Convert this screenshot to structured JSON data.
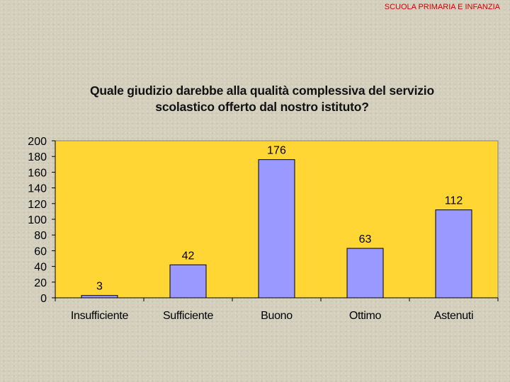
{
  "header": {
    "label": "SCUOLA PRIMARIA E INFANZIA"
  },
  "colors": {
    "plot_bg": "#ffd633",
    "bar": "#9999ff",
    "header_text": "#cc0000"
  },
  "chart_data": {
    "type": "bar",
    "title_line1": "Quale giudizio darebbe alla qualità complessiva del servizio",
    "title_line2": "scolastico offerto dal nostro istituto?",
    "categories": [
      "Insufficiente",
      "Sufficiente",
      "Buono",
      "Ottimo",
      "Astenuti"
    ],
    "values": [
      3,
      42,
      176,
      63,
      112
    ],
    "ylim": [
      0,
      200
    ],
    "yticks": [
      0,
      20,
      40,
      60,
      80,
      100,
      120,
      140,
      160,
      180,
      200
    ],
    "data_labels": true,
    "grid": false
  }
}
